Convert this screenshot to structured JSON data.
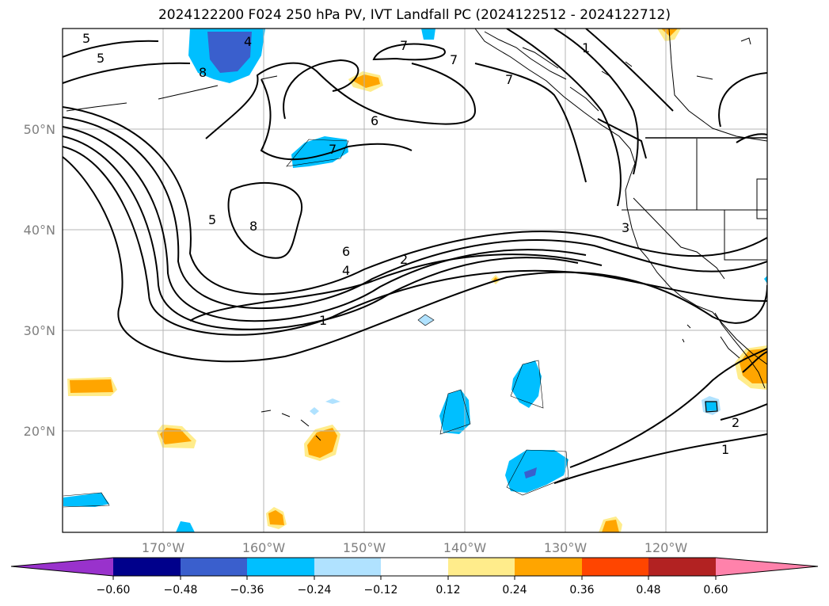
{
  "title": "2024122200 F024 250 hPa PV, IVT Landfall PC (2024122512 - 2024122712)",
  "longitude_ticks": [
    "170°W",
    "160°W",
    "150°W",
    "140°W",
    "130°W",
    "120°W"
  ],
  "latitude_ticks": [
    "50°N",
    "40°N",
    "30°N",
    "20°N"
  ],
  "colorbar": {
    "ticks": [
      "−0.60",
      "−0.48",
      "−0.36",
      "−0.24",
      "−0.12",
      "0.12",
      "0.24",
      "0.36",
      "0.48",
      "0.60"
    ],
    "colors": [
      "#9932cc",
      "#00008b",
      "#3a5fcd",
      "#00bfff",
      "#b0e2ff",
      "#ffffff",
      "#ffec8b",
      "#ffa500",
      "#ff4500",
      "#b22222",
      "#ff82ab"
    ]
  },
  "contour_labels": [
    "5",
    "4",
    "5",
    "8",
    "7",
    "7",
    "7",
    "6",
    "7",
    "5",
    "8",
    "6",
    "4",
    "2",
    "1",
    "3",
    "1",
    "2",
    "1"
  ]
}
